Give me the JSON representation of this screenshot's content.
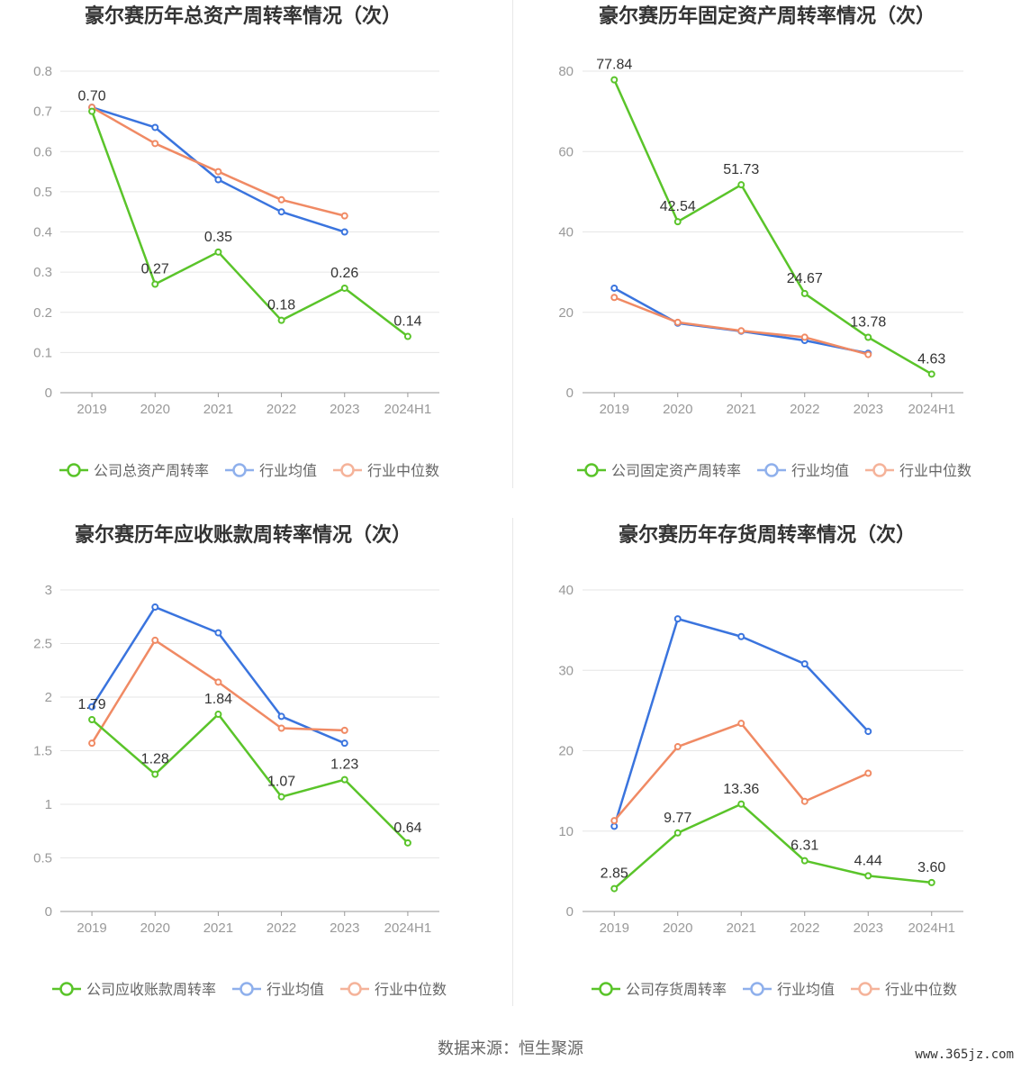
{
  "colors": {
    "company": "#5ac42a",
    "avg": "#3a74de",
    "median": "#f08a64",
    "avg_light": "#8fb0ec",
    "median_light": "#f5b39a",
    "grid": "#e6e6e6",
    "axis": "#999999",
    "tick": "#999999",
    "label": "#333333"
  },
  "source": "数据来源：恒生聚源",
  "watermark": "www.365jz.com",
  "chart_data": [
    {
      "type": "line",
      "title": "豪尔赛历年总资产周转率情况（次）",
      "categories": [
        "2019",
        "2020",
        "2021",
        "2022",
        "2023",
        "2024H1"
      ],
      "yticks": [
        0,
        0.1,
        0.2,
        0.3,
        0.4,
        0.5,
        0.6,
        0.7,
        0.8
      ],
      "ytick_labels": [
        "0",
        "0.1",
        "0.2",
        "0.3",
        "0.4",
        "0.5",
        "0.6",
        "0.7",
        "0.8"
      ],
      "ylim": [
        0,
        0.8
      ],
      "legend": "bottom",
      "series": [
        {
          "name": "公司总资产周转率",
          "role": "company",
          "values": [
            0.7,
            0.27,
            0.35,
            0.18,
            0.26,
            0.14
          ],
          "labels": [
            "0.70",
            "0.27",
            "0.35",
            "0.18",
            "0.26",
            "0.14"
          ]
        },
        {
          "name": "行业均值",
          "role": "avg",
          "values": [
            0.71,
            0.66,
            0.53,
            0.45,
            0.4,
            null
          ]
        },
        {
          "name": "行业中位数",
          "role": "median",
          "values": [
            0.71,
            0.62,
            0.55,
            0.48,
            0.44,
            null
          ]
        }
      ]
    },
    {
      "type": "line",
      "title": "豪尔赛历年固定资产周转率情况（次）",
      "categories": [
        "2019",
        "2020",
        "2021",
        "2022",
        "2023",
        "2024H1"
      ],
      "yticks": [
        0,
        20,
        40,
        60,
        80
      ],
      "ytick_labels": [
        "0",
        "20",
        "40",
        "60",
        "80"
      ],
      "ylim": [
        0,
        80
      ],
      "legend": "bottom",
      "series": [
        {
          "name": "公司固定资产周转率",
          "role": "company",
          "values": [
            77.84,
            42.54,
            51.73,
            24.67,
            13.78,
            4.63
          ],
          "labels": [
            "77.84",
            "42.54",
            "51.73",
            "24.67",
            "13.78",
            "4.63"
          ]
        },
        {
          "name": "行业均值",
          "role": "avg",
          "values": [
            26.0,
            17.3,
            15.3,
            13.0,
            9.8,
            null
          ]
        },
        {
          "name": "行业中位数",
          "role": "median",
          "values": [
            23.7,
            17.5,
            15.4,
            13.8,
            9.5,
            null
          ]
        }
      ]
    },
    {
      "type": "line",
      "title": "豪尔赛历年应收账款周转率情况（次）",
      "categories": [
        "2019",
        "2020",
        "2021",
        "2022",
        "2023",
        "2024H1"
      ],
      "yticks": [
        0,
        0.5,
        1,
        1.5,
        2,
        2.5,
        3
      ],
      "ytick_labels": [
        "0",
        "0.5",
        "1",
        "1.5",
        "2",
        "2.5",
        "3"
      ],
      "ylim": [
        0,
        3
      ],
      "legend": "bottom",
      "series": [
        {
          "name": "公司应收账款周转率",
          "role": "company",
          "values": [
            1.79,
            1.28,
            1.84,
            1.07,
            1.23,
            0.64
          ],
          "labels": [
            "1.79",
            "1.28",
            "1.84",
            "1.07",
            "1.23",
            "0.64"
          ]
        },
        {
          "name": "行业均值",
          "role": "avg",
          "values": [
            1.91,
            2.84,
            2.6,
            1.82,
            1.57,
            null
          ]
        },
        {
          "name": "行业中位数",
          "role": "median",
          "values": [
            1.57,
            2.53,
            2.14,
            1.71,
            1.69,
            null
          ]
        }
      ]
    },
    {
      "type": "line",
      "title": "豪尔赛历年存货周转率情况（次）",
      "categories": [
        "2019",
        "2020",
        "2021",
        "2022",
        "2023",
        "2024H1"
      ],
      "yticks": [
        0,
        10,
        20,
        30,
        40
      ],
      "ytick_labels": [
        "0",
        "10",
        "20",
        "30",
        "40"
      ],
      "ylim": [
        0,
        40
      ],
      "legend": "bottom",
      "series": [
        {
          "name": "公司存货周转率",
          "role": "company",
          "values": [
            2.85,
            9.77,
            13.36,
            6.31,
            4.44,
            3.6
          ],
          "labels": [
            "2.85",
            "9.77",
            "13.36",
            "6.31",
            "4.44",
            "3.60"
          ]
        },
        {
          "name": "行业均值",
          "role": "avg",
          "values": [
            10.6,
            36.4,
            34.2,
            30.8,
            22.4,
            null
          ]
        },
        {
          "name": "行业中位数",
          "role": "median",
          "values": [
            11.3,
            20.5,
            23.4,
            13.7,
            17.2,
            null
          ]
        }
      ]
    }
  ]
}
